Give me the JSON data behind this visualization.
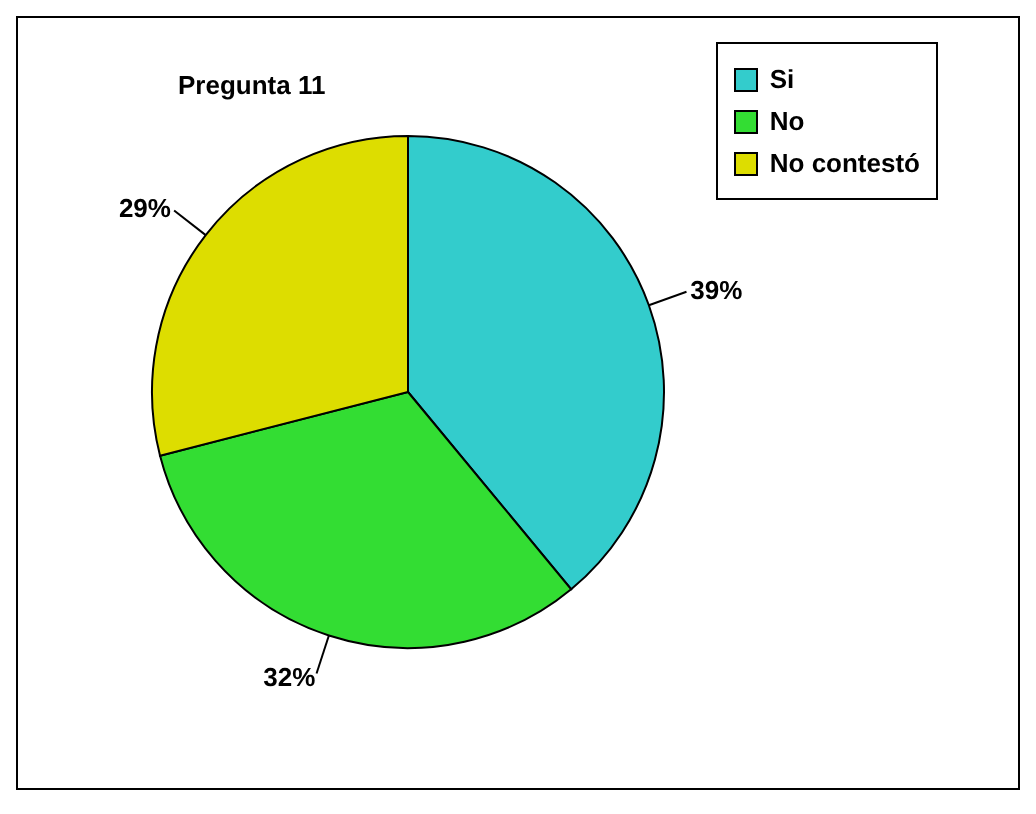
{
  "chart_data": {
    "type": "pie",
    "title": "Pregunta 11",
    "categories": [
      "Si",
      "No",
      "No contestó"
    ],
    "values": [
      39,
      32,
      29
    ],
    "colors": [
      "#33cccc",
      "#33dd33",
      "#dddd00"
    ],
    "value_labels": [
      "39%",
      "32%",
      "29%"
    ],
    "legend": "top right"
  }
}
